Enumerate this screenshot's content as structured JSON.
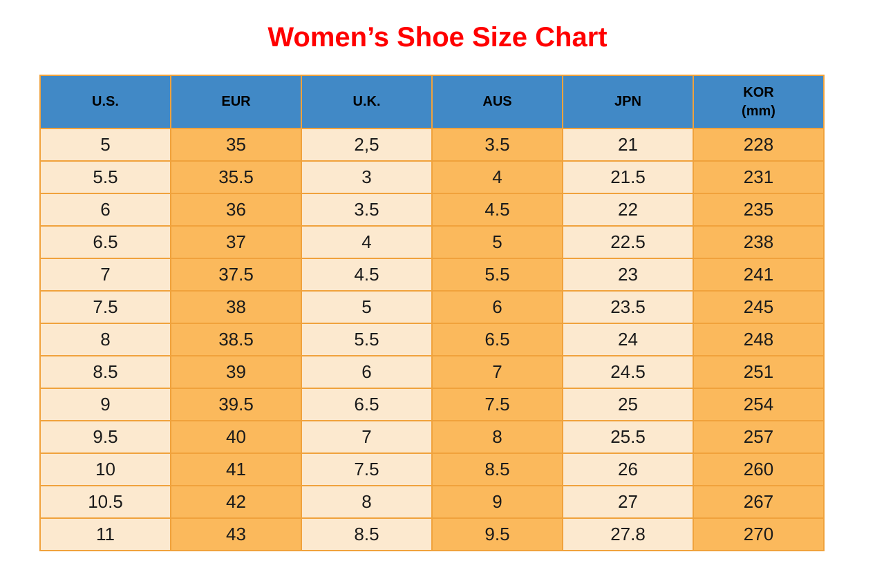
{
  "page": {
    "title": "Women’s Shoe Size Chart"
  },
  "colors": {
    "title_color": "#ff0000",
    "header_bg": "#4189c6",
    "header_text": "#000000",
    "border": "#f0a23c",
    "col_light": "#fce9cf",
    "col_orange": "#fbb95c",
    "cell_text": "#1b1b1b"
  },
  "chart_data": {
    "type": "table",
    "title": "Women’s Shoe Size Chart",
    "columns": [
      "U.S.",
      "EUR",
      "U.K.",
      "AUS",
      "JPN",
      "KOR (mm)"
    ],
    "column_keys": [
      "us",
      "eur",
      "uk",
      "aus",
      "jpn",
      "kor"
    ],
    "header_lines": [
      [
        "U.S."
      ],
      [
        "EUR"
      ],
      [
        "U.K."
      ],
      [
        "AUS"
      ],
      [
        "JPN"
      ],
      [
        "KOR",
        "(mm)"
      ]
    ],
    "column_fill_pattern": [
      "light",
      "orange",
      "light",
      "orange",
      "light",
      "orange"
    ],
    "rows": [
      [
        "5",
        "35",
        "2,5",
        "3.5",
        "21",
        "228"
      ],
      [
        "5.5",
        "35.5",
        "3",
        "4",
        "21.5",
        "231"
      ],
      [
        "6",
        "36",
        "3.5",
        "4.5",
        "22",
        "235"
      ],
      [
        "6.5",
        "37",
        "4",
        "5",
        "22.5",
        "238"
      ],
      [
        "7",
        "37.5",
        "4.5",
        "5.5",
        "23",
        "241"
      ],
      [
        "7.5",
        "38",
        "5",
        "6",
        "23.5",
        "245"
      ],
      [
        "8",
        "38.5",
        "5.5",
        "6.5",
        "24",
        "248"
      ],
      [
        "8.5",
        "39",
        "6",
        "7",
        "24.5",
        "251"
      ],
      [
        "9",
        "39.5",
        "6.5",
        "7.5",
        "25",
        "254"
      ],
      [
        "9.5",
        "40",
        "7",
        "8",
        "25.5",
        "257"
      ],
      [
        "10",
        "41",
        "7.5",
        "8.5",
        "26",
        "260"
      ],
      [
        "10.5",
        "42",
        "8",
        "9",
        "27",
        "267"
      ],
      [
        "11",
        "43",
        "8.5",
        "9.5",
        "27.8",
        "270"
      ]
    ]
  }
}
